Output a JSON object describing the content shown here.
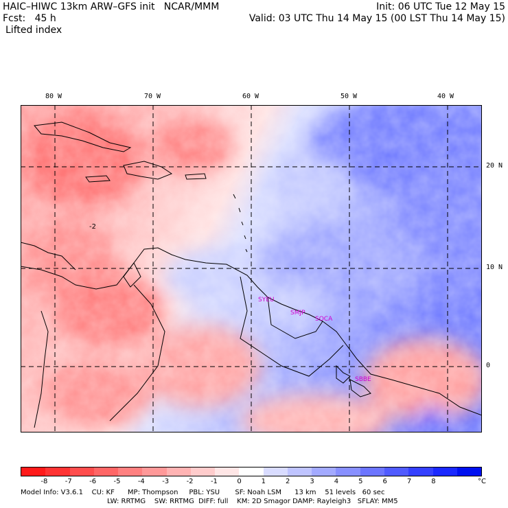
{
  "header": {
    "title_left": "HAIC–HIWC 13km ARW–GFS init   NCAR/MMM",
    "forecast": "Fcst:   45 h",
    "field": "Lifted index",
    "init": "Init: 06 UTC Tue 12 May 15",
    "valid": "Valid: 03 UTC Thu 14 May 15 (00 LST Thu 14 May 15)"
  },
  "map": {
    "lon_labels": [
      "80 W",
      "70 W",
      "60 W",
      "50 W",
      "40 W"
    ],
    "lat_labels": [
      "20 N",
      "10 N",
      "0"
    ],
    "contour_label": "-2",
    "stations": [
      "SYEU",
      "SMJP",
      "SOCA",
      "SBBE"
    ]
  },
  "colorbar": {
    "labels": [
      "-8",
      "-7",
      "-6",
      "-5",
      "-4",
      "-3",
      "-2",
      "-1",
      "0",
      "1",
      "2",
      "3",
      "4",
      "5",
      "6",
      "7",
      "8"
    ],
    "unit": "°C",
    "colors": [
      "#ff1a1a",
      "#ff3333",
      "#ff4d4d",
      "#ff6666",
      "#ff8080",
      "#ff9999",
      "#ffb3b3",
      "#ffcccc",
      "#ffe6e6",
      "#ffffff",
      "#d9dcff",
      "#bfc4ff",
      "#a3aaff",
      "#8890ff",
      "#6c75ff",
      "#505bff",
      "#3440ff",
      "#1a28ff",
      "#0010f0"
    ]
  },
  "footer": {
    "line1": "Model Info: V3.6.1    CU: KF      MP: Thompson     PBL: YSU       SF: Noah LSM      13 km    51 levels   60 sec",
    "line2": "LW: RRTMG    SW: RRTMG  DIFF: full    KM: 2D Smagor DAMP: Rayleigh3   SFLAY: MM5"
  }
}
